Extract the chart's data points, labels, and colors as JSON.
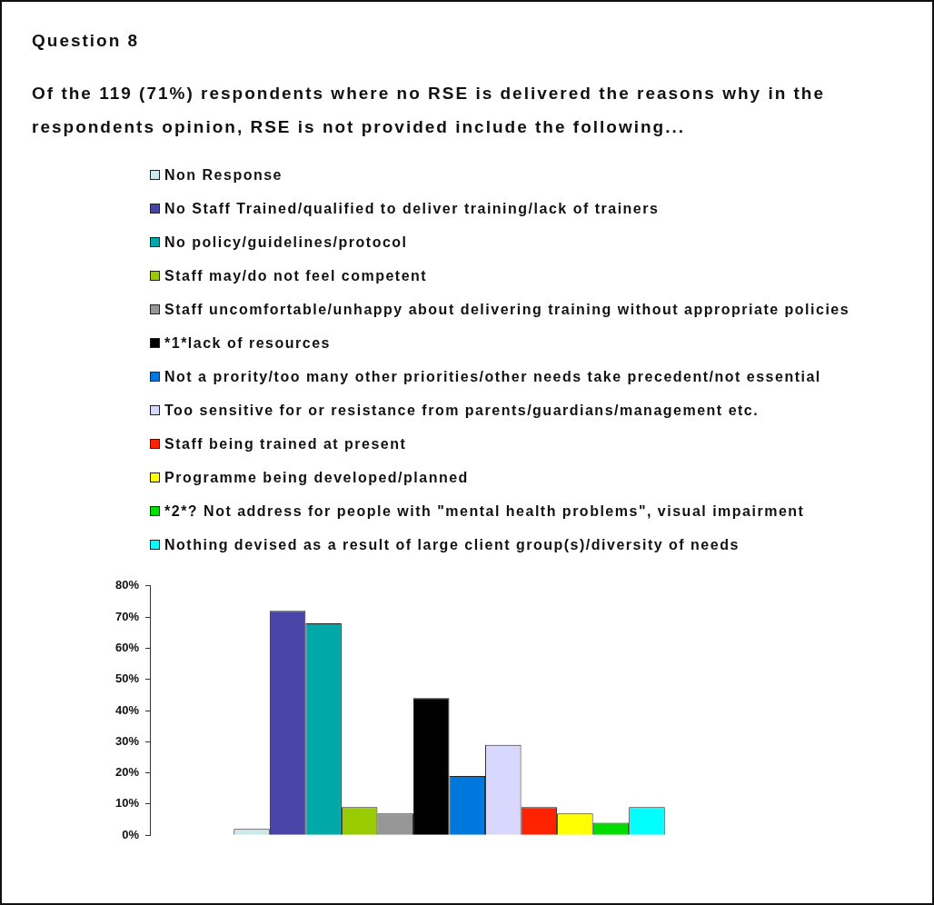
{
  "chart_data": {
    "type": "bar",
    "title": "Question 8",
    "subtitle": "Of the 119 (71%) respondents where no RSE is delivered the reasons why in the respondents opinion, RSE is not provided include the following...",
    "categories": [
      null
    ],
    "series": [
      {
        "name": "Non Response",
        "color": "#cce8ea",
        "values": [
          2
        ]
      },
      {
        "name": "No Staff Trained/qualified to deliver training/lack of trainers",
        "color": "#4844a8",
        "values": [
          72
        ]
      },
      {
        "name": "No policy/guidelines/protocol",
        "color": "#00a8a8",
        "values": [
          68
        ]
      },
      {
        "name": "Staff may/do not feel competent",
        "color": "#99cc00",
        "values": [
          9
        ]
      },
      {
        "name": "Staff uncomfortable/unhappy about delivering training without appropriate policies",
        "color": "#969696",
        "values": [
          7
        ]
      },
      {
        "name": "*1*lack of resources",
        "color": "#000000",
        "values": [
          44
        ]
      },
      {
        "name": "Not a prority/too many other priorities/other needs take precedent/not essential",
        "color": "#0077dd",
        "values": [
          19
        ]
      },
      {
        "name": "Too sensitive for or resistance from parents/guardians/management etc.",
        "color": "#d8d8ff",
        "values": [
          29
        ]
      },
      {
        "name": "Staff being trained at present",
        "color": "#ff2200",
        "values": [
          9
        ]
      },
      {
        "name": "Programme being developed/planned",
        "color": "#ffff00",
        "values": [
          7
        ]
      },
      {
        "name": "*2*? Not address for people with \"mental health problems\", visual impairment",
        "color": "#00dd00",
        "values": [
          4
        ]
      },
      {
        "name": "Nothing devised as a result of large client group(s)/diversity of needs",
        "color": "#00ffff",
        "values": [
          9
        ]
      }
    ],
    "ylim": [
      0,
      80
    ],
    "yticks": [
      {
        "value": 0,
        "label": "0%"
      },
      {
        "value": 10,
        "label": "10%"
      },
      {
        "value": 20,
        "label": "20%"
      },
      {
        "value": 30,
        "label": "30%"
      },
      {
        "value": 40,
        "label": "40%"
      },
      {
        "value": 50,
        "label": "50%"
      },
      {
        "value": 60,
        "label": "60%"
      },
      {
        "value": 70,
        "label": "70%"
      },
      {
        "value": 80,
        "label": "80%"
      }
    ],
    "legend": "top",
    "tick_labels": "y"
  }
}
